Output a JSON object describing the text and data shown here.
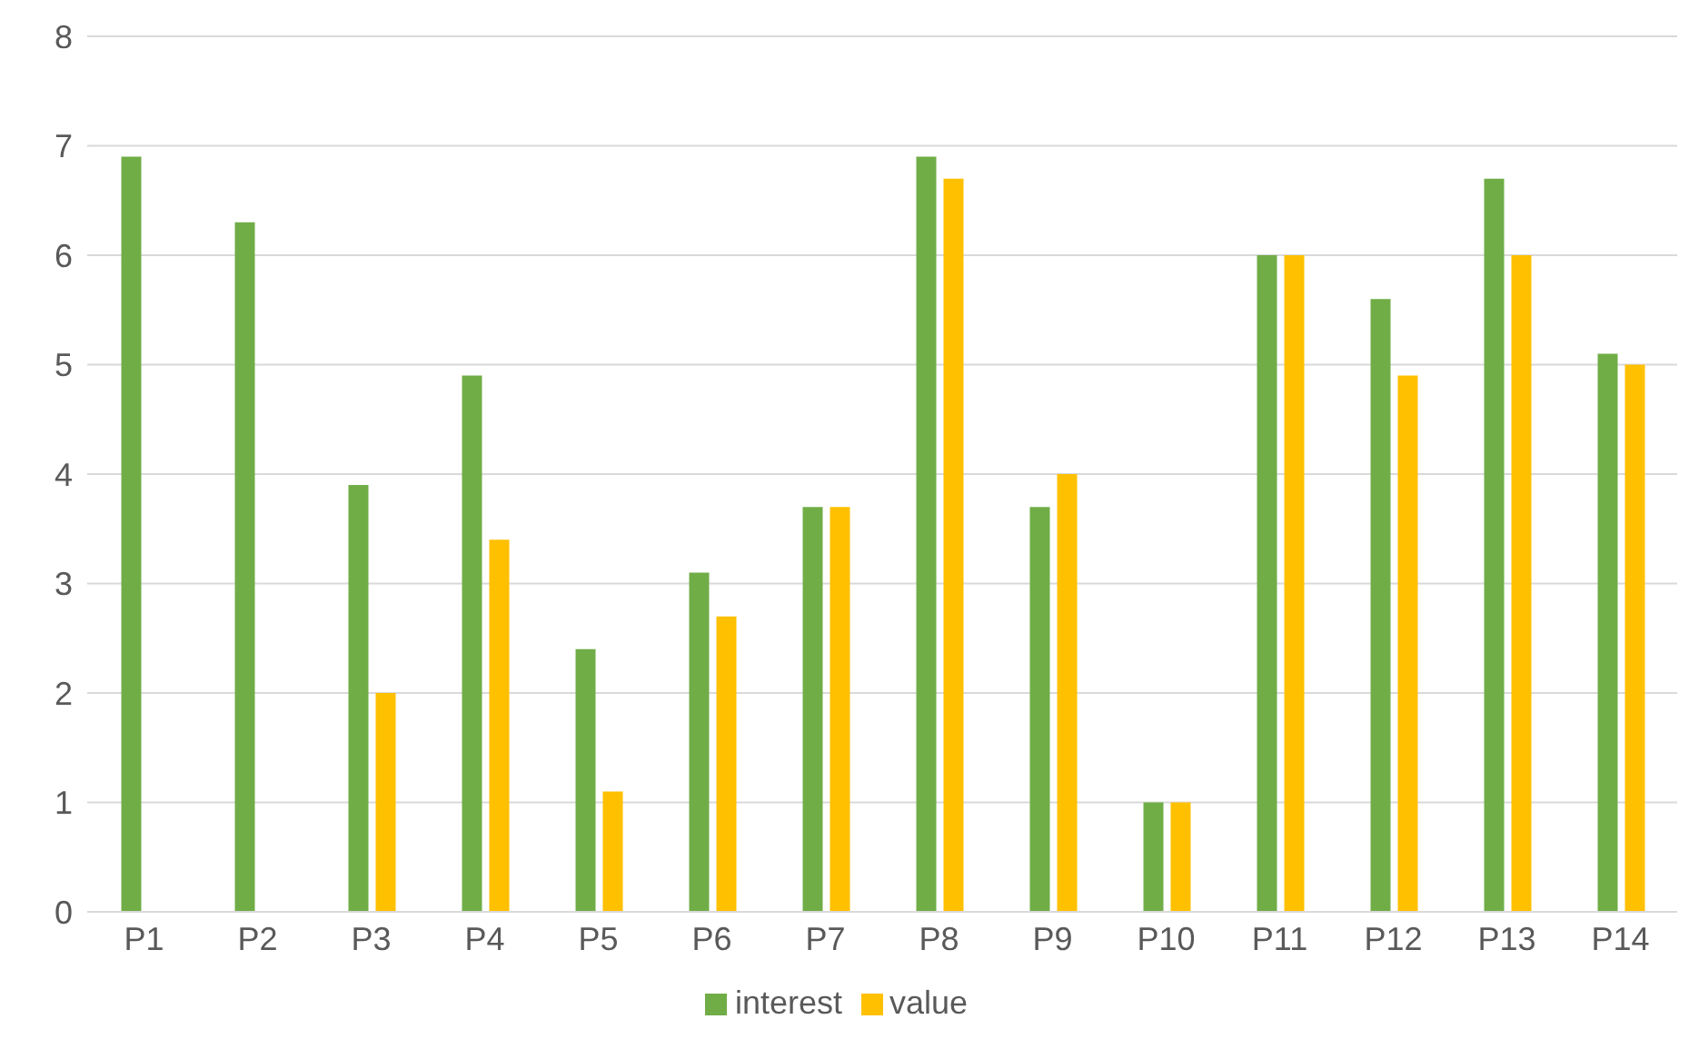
{
  "chart_data": {
    "type": "bar",
    "categories": [
      "P1",
      "P2",
      "P3",
      "P4",
      "P5",
      "P6",
      "P7",
      "P8",
      "P9",
      "P10",
      "P11",
      "P12",
      "P13",
      "P14"
    ],
    "series": [
      {
        "name": "interest",
        "color": "#70ad47",
        "values": [
          6.9,
          6.3,
          3.9,
          4.9,
          2.4,
          3.1,
          3.7,
          6.9,
          3.7,
          1,
          6,
          5.6,
          6.7,
          5.1
        ]
      },
      {
        "name": "value",
        "color": "#ffc000",
        "values": [
          null,
          null,
          2,
          3.4,
          1.1,
          2.7,
          3.7,
          6.7,
          4,
          1,
          6,
          4.9,
          6,
          5
        ]
      }
    ],
    "ylim": [
      0,
      8
    ],
    "yticks": [
      0,
      1,
      2,
      3,
      4,
      5,
      6,
      7,
      8
    ],
    "grid": "y",
    "legend": "bottom"
  }
}
